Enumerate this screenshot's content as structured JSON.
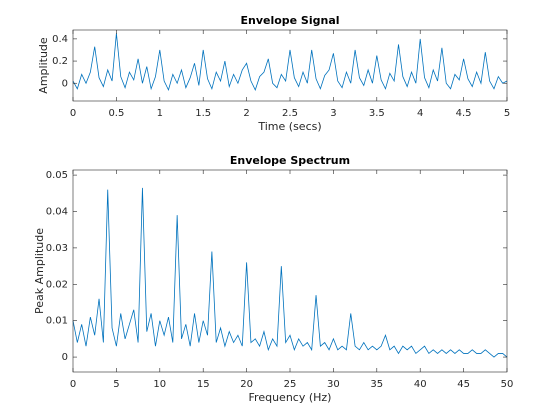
{
  "chart_data": [
    {
      "type": "line",
      "title": "Envelope Signal",
      "xlabel": "Time (secs)",
      "ylabel": "Amplitude",
      "color": "#0072bd",
      "xlim": [
        0,
        5
      ],
      "xticks": [
        0,
        0.5,
        1,
        1.5,
        2,
        2.5,
        3,
        3.5,
        4,
        4.5,
        5
      ],
      "ylim": [
        -0.16,
        0.48
      ],
      "yticks": [
        0,
        0.2,
        0.4
      ],
      "x": [
        0,
        0.05,
        0.1,
        0.15,
        0.2,
        0.25,
        0.3,
        0.35,
        0.4,
        0.45,
        0.5,
        0.55,
        0.6,
        0.65,
        0.7,
        0.75,
        0.8,
        0.85,
        0.9,
        0.95,
        1,
        1.05,
        1.1,
        1.15,
        1.2,
        1.25,
        1.3,
        1.35,
        1.4,
        1.45,
        1.5,
        1.55,
        1.6,
        1.65,
        1.7,
        1.75,
        1.8,
        1.85,
        1.9,
        1.95,
        2,
        2.05,
        2.1,
        2.15,
        2.2,
        2.25,
        2.3,
        2.35,
        2.4,
        2.45,
        2.5,
        2.55,
        2.6,
        2.65,
        2.7,
        2.75,
        2.8,
        2.85,
        2.9,
        2.95,
        3,
        3.05,
        3.1,
        3.15,
        3.2,
        3.25,
        3.3,
        3.35,
        3.4,
        3.45,
        3.5,
        3.55,
        3.6,
        3.65,
        3.7,
        3.75,
        3.8,
        3.85,
        3.9,
        3.95,
        4,
        4.05,
        4.1,
        4.15,
        4.2,
        4.25,
        4.3,
        4.35,
        4.4,
        4.45,
        4.5,
        4.55,
        4.6,
        4.65,
        4.7,
        4.75,
        4.8,
        4.85,
        4.9,
        4.95,
        5
      ],
      "values": [
        0.02,
        -0.05,
        0.08,
        0.0,
        0.1,
        0.33,
        0.05,
        -0.03,
        0.12,
        0.02,
        0.45,
        0.06,
        -0.04,
        0.1,
        0.03,
        0.22,
        0.0,
        0.15,
        -0.05,
        0.06,
        0.3,
        0.02,
        -0.06,
        0.08,
        0.0,
        0.12,
        -0.04,
        0.05,
        0.18,
        -0.02,
        0.3,
        0.04,
        -0.05,
        0.1,
        0.02,
        0.2,
        -0.03,
        0.08,
        0.0,
        0.12,
        0.18,
        0.02,
        -0.06,
        0.06,
        0.1,
        0.22,
        0.0,
        -0.04,
        0.08,
        0.02,
        0.3,
        0.05,
        -0.03,
        0.1,
        0.0,
        0.3,
        0.04,
        -0.05,
        0.07,
        0.12,
        0.27,
        0.02,
        -0.04,
        0.1,
        0.0,
        0.3,
        0.05,
        -0.02,
        0.12,
        0.0,
        0.25,
        0.03,
        -0.05,
        0.09,
        0.02,
        0.35,
        0.06,
        -0.03,
        0.1,
        0.0,
        0.4,
        0.05,
        -0.04,
        0.12,
        0.02,
        0.32,
        0.0,
        -0.05,
        0.08,
        0.03,
        0.22,
        0.04,
        -0.03,
        0.1,
        0.0,
        0.28,
        0.02,
        -0.05,
        0.06,
        0.0,
        0.02
      ]
    },
    {
      "type": "line",
      "title": "Envelope Spectrum",
      "xlabel": "Frequency (Hz)",
      "ylabel": "Peak Amplitude",
      "color": "#0072bd",
      "xlim": [
        0,
        50
      ],
      "xticks": [
        0,
        5,
        10,
        15,
        20,
        25,
        30,
        35,
        40,
        45,
        50
      ],
      "ylim": [
        -0.0041,
        0.0514
      ],
      "yticks": [
        0,
        0.01,
        0.02,
        0.03,
        0.04,
        0.05
      ],
      "x": [
        0,
        0.5,
        1,
        1.5,
        2,
        2.5,
        3,
        3.5,
        4,
        4.5,
        5,
        5.5,
        6,
        6.5,
        7,
        7.5,
        8,
        8.5,
        9,
        9.5,
        10,
        10.5,
        11,
        11.5,
        12,
        12.5,
        13,
        13.5,
        14,
        14.5,
        15,
        15.5,
        16,
        16.5,
        17,
        17.5,
        18,
        18.5,
        19,
        19.5,
        20,
        20.5,
        21,
        21.5,
        22,
        22.5,
        23,
        23.5,
        24,
        24.5,
        25,
        25.5,
        26,
        26.5,
        27,
        27.5,
        28,
        28.5,
        29,
        29.5,
        30,
        30.5,
        31,
        31.5,
        32,
        32.5,
        33,
        33.5,
        34,
        34.5,
        35,
        35.5,
        36,
        36.5,
        37,
        37.5,
        38,
        38.5,
        39,
        39.5,
        40,
        40.5,
        41,
        41.5,
        42,
        42.5,
        43,
        43.5,
        44,
        44.5,
        45,
        45.5,
        46,
        46.5,
        47,
        47.5,
        48,
        48.5,
        49,
        49.5,
        50
      ],
      "values": [
        0.01,
        0.004,
        0.009,
        0.003,
        0.011,
        0.006,
        0.016,
        0.004,
        0.046,
        0.008,
        0.003,
        0.012,
        0.005,
        0.009,
        0.013,
        0.004,
        0.0465,
        0.007,
        0.012,
        0.003,
        0.01,
        0.006,
        0.011,
        0.004,
        0.039,
        0.005,
        0.009,
        0.003,
        0.012,
        0.004,
        0.01,
        0.006,
        0.029,
        0.004,
        0.008,
        0.003,
        0.007,
        0.004,
        0.006,
        0.003,
        0.026,
        0.004,
        0.005,
        0.003,
        0.007,
        0.002,
        0.005,
        0.003,
        0.025,
        0.004,
        0.006,
        0.002,
        0.005,
        0.003,
        0.004,
        0.002,
        0.017,
        0.003,
        0.004,
        0.002,
        0.005,
        0.002,
        0.003,
        0.002,
        0.012,
        0.003,
        0.002,
        0.004,
        0.002,
        0.003,
        0.002,
        0.003,
        0.006,
        0.002,
        0.003,
        0.001,
        0.003,
        0.002,
        0.003,
        0.001,
        0.002,
        0.003,
        0.001,
        0.002,
        0.001,
        0.002,
        0.001,
        0.002,
        0.001,
        0.002,
        0.001,
        0.001,
        0.002,
        0.001,
        0.001,
        0.002,
        0.001,
        0.0,
        0.001,
        0.001,
        0.0
      ]
    }
  ]
}
